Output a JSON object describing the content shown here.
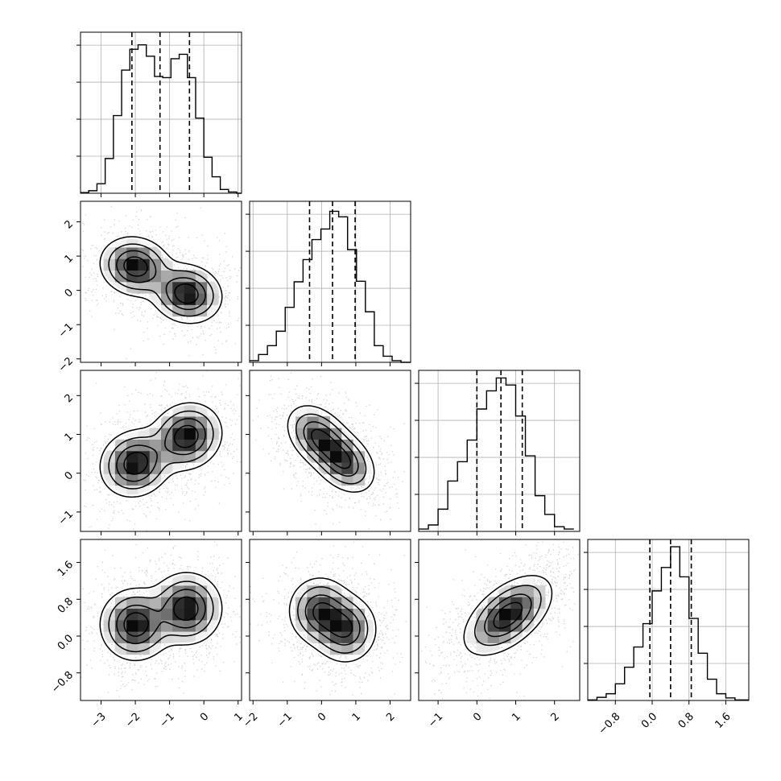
{
  "chart_data": {
    "type": "corner",
    "ndim": 4,
    "grid": true,
    "axes": [
      {
        "range": [
          -3.6,
          1.1
        ],
        "ticks": [
          -3,
          -2,
          -1,
          0,
          1
        ],
        "tick_labels": [
          "−3",
          "−2",
          "−1",
          "0",
          "1"
        ]
      },
      {
        "range": [
          -2.1,
          2.6
        ],
        "ticks": [
          -2,
          -1,
          0,
          1,
          2
        ],
        "tick_labels": [
          "−2",
          "−1",
          "0",
          "1",
          "2"
        ]
      },
      {
        "range": [
          -1.5,
          2.65
        ],
        "ticks": [
          -1,
          0,
          1,
          2
        ],
        "tick_labels": [
          "−1",
          "0",
          "1",
          "2"
        ]
      },
      {
        "range": [
          -1.4,
          2.1
        ],
        "ticks": [
          -0.8,
          0.0,
          0.8,
          1.6
        ],
        "tick_labels": [
          "−0.8",
          "0.0",
          "0.8",
          "1.6"
        ]
      }
    ],
    "histograms": [
      {
        "dim": 0,
        "bins": [
          -3.6,
          -3.36,
          -3.12,
          -2.88,
          -2.64,
          -2.4,
          -2.16,
          -1.92,
          -1.68,
          -1.44,
          -1.2,
          -0.96,
          -0.72,
          -0.48,
          -0.24,
          0.0,
          0.24,
          0.48,
          0.72,
          0.96,
          1.1
        ],
        "counts": [
          1,
          4,
          15,
          55,
          123,
          195,
          228,
          235,
          217,
          185,
          183,
          213,
          220,
          183,
          119,
          57,
          26,
          6,
          2,
          0
        ],
        "ymax": 255,
        "quantiles": [
          -2.1,
          -1.28,
          -0.42
        ]
      },
      {
        "dim": 1,
        "bins": [
          -2.1,
          -1.84,
          -1.58,
          -1.32,
          -1.06,
          -0.8,
          -0.54,
          -0.28,
          -0.02,
          0.24,
          0.5,
          0.76,
          1.02,
          1.28,
          1.54,
          1.8,
          2.06,
          2.32,
          2.6
        ],
        "counts": [
          3,
          14,
          30,
          56,
          99,
          145,
          185,
          221,
          240,
          272,
          262,
          203,
          146,
          91,
          30,
          11,
          3,
          0
        ],
        "ymax": 290,
        "quantiles": [
          -0.35,
          0.32,
          0.98
        ]
      },
      {
        "dim": 2,
        "bins": [
          -1.5,
          -1.25,
          -1.0,
          -0.75,
          -0.5,
          -0.25,
          0.0,
          0.25,
          0.5,
          0.75,
          1.0,
          1.25,
          1.5,
          1.75,
          2.0,
          2.25,
          2.5
        ],
        "counts": [
          4,
          11,
          38,
          86,
          119,
          156,
          209,
          240,
          262,
          250,
          197,
          129,
          61,
          29,
          8,
          4
        ],
        "ymax": 275,
        "quantiles": [
          0.0,
          0.62,
          1.17
        ]
      },
      {
        "dim": 3,
        "bins": [
          -1.4,
          -1.2,
          -1.0,
          -0.8,
          -0.6,
          -0.4,
          -0.2,
          0.0,
          0.2,
          0.4,
          0.6,
          0.8,
          1.0,
          1.2,
          1.4,
          1.6,
          1.8,
          2.1
        ],
        "counts": [
          1,
          6,
          13,
          32,
          64,
          103,
          148,
          211,
          256,
          296,
          238,
          158,
          91,
          41,
          13,
          5,
          1
        ],
        "ymax": 310,
        "quantiles": [
          -0.05,
          0.4,
          0.85
        ]
      }
    ],
    "pairs": [
      {
        "x_dim": 0,
        "y_dim": 1,
        "modes": [
          {
            "cx": -2.0,
            "cy": 0.7,
            "sx": 0.5,
            "sy": 0.42,
            "rho": -0.1,
            "w": 0.5
          },
          {
            "cx": -0.5,
            "cy": -0.1,
            "sx": 0.5,
            "sy": 0.42,
            "rho": -0.1,
            "w": 0.5
          }
        ]
      },
      {
        "x_dim": 0,
        "y_dim": 2,
        "modes": [
          {
            "cx": -2.0,
            "cy": 0.25,
            "sx": 0.5,
            "sy": 0.42,
            "rho": 0.1,
            "w": 0.5
          },
          {
            "cx": -0.5,
            "cy": 0.95,
            "sx": 0.5,
            "sy": 0.42,
            "rho": 0.1,
            "w": 0.5
          }
        ]
      },
      {
        "x_dim": 1,
        "y_dim": 2,
        "modes": [
          {
            "cx": -0.1,
            "cy": 0.95,
            "sx": 0.45,
            "sy": 0.4,
            "rho": -0.35,
            "w": 0.5
          },
          {
            "cx": 0.65,
            "cy": 0.3,
            "sx": 0.45,
            "sy": 0.4,
            "rho": -0.35,
            "w": 0.5
          }
        ]
      },
      {
        "x_dim": 0,
        "y_dim": 3,
        "modes": [
          {
            "cx": -2.0,
            "cy": 0.25,
            "sx": 0.5,
            "sy": 0.38,
            "rho": 0.0,
            "w": 0.5
          },
          {
            "cx": -0.5,
            "cy": 0.6,
            "sx": 0.5,
            "sy": 0.38,
            "rho": 0.0,
            "w": 0.5
          }
        ]
      },
      {
        "x_dim": 1,
        "y_dim": 3,
        "modes": [
          {
            "cx": -0.05,
            "cy": 0.55,
            "sx": 0.45,
            "sy": 0.36,
            "rho": 0.0,
            "w": 0.5
          },
          {
            "cx": 0.7,
            "cy": 0.15,
            "sx": 0.45,
            "sy": 0.36,
            "rho": 0.0,
            "w": 0.5
          }
        ]
      },
      {
        "x_dim": 2,
        "y_dim": 3,
        "modes": [
          {
            "cx": 0.8,
            "cy": 0.45,
            "sx": 0.55,
            "sy": 0.42,
            "rho": 0.55,
            "w": 1.0
          }
        ]
      }
    ],
    "scatter_color": "#bdbdbd",
    "density_color": "#000000",
    "contour_color": "#000000",
    "grid_color": "#b0b0b0"
  }
}
